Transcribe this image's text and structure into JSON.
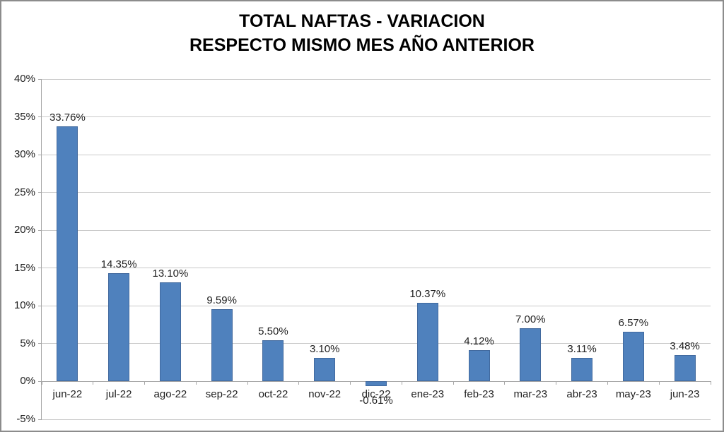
{
  "title": {
    "line1": "TOTAL NAFTAS - VARIACION",
    "line2": "RESPECTO MISMO MES AÑO ANTERIOR"
  },
  "chart_data": {
    "type": "bar",
    "title": "TOTAL NAFTAS - VARIACION RESPECTO MISMO MES AÑO ANTERIOR",
    "categories": [
      "jun-22",
      "jul-22",
      "ago-22",
      "sep-22",
      "oct-22",
      "nov-22",
      "dic-22",
      "ene-23",
      "feb-23",
      "mar-23",
      "abr-23",
      "may-23",
      "jun-23"
    ],
    "values": [
      33.76,
      14.35,
      13.1,
      9.59,
      5.5,
      3.1,
      -0.61,
      10.37,
      4.12,
      7.0,
      3.11,
      6.57,
      3.48
    ],
    "value_labels": [
      "33.76%",
      "14.35%",
      "13.10%",
      "9.59%",
      "5.50%",
      "3.10%",
      "-0.61%",
      "10.37%",
      "4.12%",
      "7.00%",
      "3.11%",
      "6.57%",
      "3.48%"
    ],
    "xlabel": "",
    "ylabel": "",
    "ylim": [
      -5,
      40
    ],
    "ytick_step": 5,
    "ytick_labels": [
      "-5%",
      "0%",
      "5%",
      "10%",
      "15%",
      "20%",
      "25%",
      "30%",
      "35%",
      "40%"
    ],
    "grid": true,
    "legend": false,
    "colors": {
      "bar_fill": "#4F81BD",
      "bar_border": "#41699E",
      "gridline": "#C9C9C9",
      "axis": "#A6A6A6",
      "label_text": "#1F1F1F",
      "title_text": "#000000",
      "frame_border": "#8C8C8C"
    }
  }
}
